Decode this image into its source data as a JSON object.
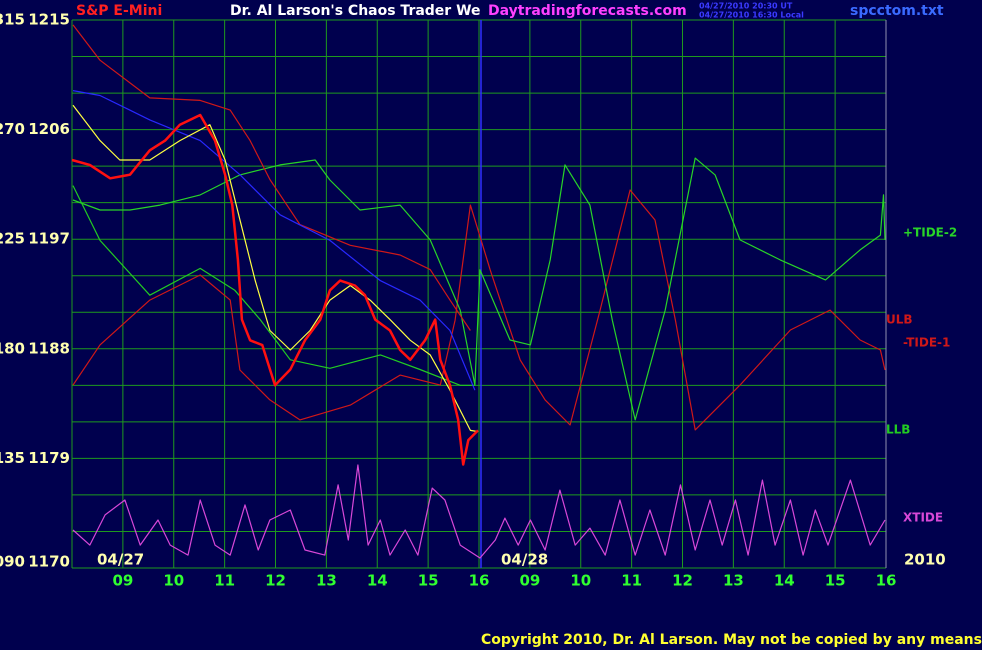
{
  "chart_data": {
    "type": "line",
    "instrument": "S&P E-Mini",
    "title": "Dr. Al Larson's Chaos Trader We",
    "website": "Daytradingforecasts.com",
    "timestamps": [
      "04/27/2010 20:30 UT",
      "04/27/2010 16:30 Local"
    ],
    "filename": "spcctom.txt",
    "copyright": "Copyright 2010, Dr. Al Larson. May not be copied by any means.",
    "date_labels": [
      "04/27",
      "04/28"
    ],
    "year": "2010",
    "xlim": [
      0,
      16
    ],
    "xticks": [
      {
        "value": 1,
        "label": "09"
      },
      {
        "value": 2,
        "label": "10"
      },
      {
        "value": 3,
        "label": "11"
      },
      {
        "value": 4,
        "label": "12"
      },
      {
        "value": 5,
        "label": "13"
      },
      {
        "value": 6,
        "label": "14"
      },
      {
        "value": 7,
        "label": "15"
      },
      {
        "value": 8,
        "label": "16"
      },
      {
        "value": 9,
        "label": "09"
      },
      {
        "value": 10,
        "label": "10"
      },
      {
        "value": 11,
        "label": "11"
      },
      {
        "value": 12,
        "label": "12"
      },
      {
        "value": 13,
        "label": "13"
      },
      {
        "value": 14,
        "label": "14"
      },
      {
        "value": 15,
        "label": "15"
      },
      {
        "value": 16,
        "label": "16"
      }
    ],
    "ylim": [
      1170,
      1215
    ],
    "yticks": [
      1170,
      1179,
      1188,
      1197,
      1206,
      1215
    ],
    "y2lim": [
      90,
      315
    ],
    "y2ticks": [
      {
        "value": 90,
        "label": "090"
      },
      135,
      180,
      225,
      270,
      315
    ],
    "ygrid": [
      1170,
      1173,
      1176,
      1179,
      1182,
      1185,
      1188,
      1191,
      1194,
      1197,
      1200,
      1203,
      1206,
      1209,
      1212,
      1215
    ],
    "grid": true,
    "series": [
      {
        "color": "#ff1010",
        "x": [
          0.0,
          0.35,
          0.75,
          1.14,
          1.53,
          1.83,
          2.12,
          2.52,
          2.81,
          3.01,
          3.15,
          3.26,
          3.34,
          3.5,
          3.74,
          3.99,
          4.29,
          4.58,
          4.88,
          5.07,
          5.27,
          5.56,
          5.76,
          5.96,
          6.25,
          6.45,
          6.65,
          6.94,
          7.14,
          7.24,
          7.43,
          7.59,
          7.69,
          7.79,
          7.98
        ],
        "values": [
          1203.5,
          1203.1,
          1202.0,
          1202.3,
          1204.3,
          1205.1,
          1206.4,
          1207.2,
          1205.1,
          1202.3,
          1199.8,
          1195.3,
          1190.4,
          1188.7,
          1188.3,
          1185.0,
          1186.3,
          1188.7,
          1190.4,
          1192.8,
          1193.6,
          1193.2,
          1192.4,
          1190.4,
          1189.5,
          1187.9,
          1187.1,
          1188.7,
          1190.4,
          1187.1,
          1185.0,
          1182.2,
          1178.5,
          1180.5,
          1181.3
        ]
      },
      {
        "color": "#ffff40",
        "x": [
          0.02,
          0.55,
          0.94,
          1.53,
          2.12,
          2.71,
          3.01,
          3.3,
          3.6,
          3.89,
          4.29,
          4.68,
          5.07,
          5.47,
          5.86,
          6.25,
          6.65,
          7.04,
          7.43,
          7.83,
          7.98
        ],
        "values": [
          1208.0,
          1205.1,
          1203.5,
          1203.5,
          1205.1,
          1206.4,
          1203.5,
          1198.6,
          1193.6,
          1189.5,
          1187.9,
          1189.5,
          1192.0,
          1193.2,
          1192.0,
          1190.4,
          1188.7,
          1187.5,
          1184.6,
          1181.3,
          1181.2
        ]
      },
      {
        "color": "#2828ff",
        "x": [
          0.02,
          0.55,
          1.53,
          2.52,
          3.3,
          4.09,
          5.07,
          6.06,
          6.84,
          7.43,
          7.92
        ],
        "values": [
          1209.2,
          1208.8,
          1206.8,
          1205.1,
          1202.3,
          1199.0,
          1196.9,
          1193.6,
          1192.0,
          1189.5,
          1184.6
        ]
      },
      {
        "name": "ULB",
        "color": "#d01818",
        "x": [
          0.02,
          0.55,
          1.53,
          2.52,
          3.11,
          3.5,
          3.89,
          4.48,
          5.47,
          6.45,
          7.04,
          7.43,
          7.83
        ],
        "values": [
          1214.6,
          1211.7,
          1208.6,
          1208.4,
          1207.6,
          1205.1,
          1201.9,
          1198.2,
          1196.5,
          1195.7,
          1194.5,
          1192.0,
          1189.5
        ]
      },
      {
        "name": "LLB",
        "color": "#22cc22",
        "x": [
          0.02,
          0.55,
          1.53,
          2.52,
          3.2,
          3.7,
          4.29,
          5.07,
          6.06,
          6.84,
          7.63,
          7.92
        ],
        "values": [
          1201.4,
          1196.9,
          1192.4,
          1194.6,
          1192.8,
          1190.4,
          1187.1,
          1186.4,
          1187.5,
          1186.3,
          1185.0,
          1185.0
        ]
      },
      {
        "name": "+TIDE-2",
        "color": "#28d428",
        "axis": "y2",
        "x": [
          0.02,
          0.55,
          1.14,
          1.73,
          2.52,
          3.3,
          4.09,
          4.78,
          5.07,
          5.66,
          6.45,
          7.04,
          7.63,
          7.92,
          8.02,
          8.61,
          9.01,
          9.4,
          9.69,
          10.18,
          10.62,
          11.07,
          11.66,
          12.25,
          12.64,
          13.13,
          13.92,
          14.81,
          15.49,
          15.89,
          15.95,
          15.98
        ],
        "values": [
          241.1,
          237.0,
          237.0,
          239.0,
          243.2,
          251.4,
          255.5,
          257.5,
          249.3,
          237.0,
          239.0,
          224.7,
          195.9,
          165.1,
          212.4,
          183.6,
          181.6,
          216.5,
          255.5,
          239.0,
          191.8,
          150.8,
          195.9,
          258.3,
          251.4,
          224.7,
          216.5,
          208.3,
          220.6,
          226.7,
          243.2,
          224.7
        ]
      },
      {
        "name": "-TIDE-1",
        "color": "#d01818",
        "axis": "y2",
        "x": [
          0.02,
          0.55,
          1.53,
          2.52,
          3.11,
          3.3,
          3.89,
          4.48,
          5.47,
          6.45,
          7.24,
          7.53,
          7.83,
          8.22,
          8.81,
          9.3,
          9.79,
          10.38,
          10.97,
          11.46,
          11.86,
          12.25,
          13.13,
          14.12,
          14.9,
          15.49,
          15.89,
          15.98
        ],
        "values": [
          165.1,
          181.6,
          200.0,
          210.3,
          200.0,
          171.3,
          159.0,
          150.8,
          156.9,
          169.2,
          165.1,
          191.8,
          239.0,
          212.4,
          175.4,
          159.0,
          148.7,
          195.9,
          245.2,
          232.9,
          191.8,
          146.7,
          165.1,
          187.7,
          195.9,
          183.6,
          179.5,
          171.3
        ]
      },
      {
        "name": "XTIDE",
        "color": "#d848d8",
        "axis": "y2",
        "x": [
          0.02,
          0.35,
          0.65,
          1.04,
          1.34,
          1.69,
          1.93,
          2.28,
          2.52,
          2.81,
          3.11,
          3.4,
          3.66,
          3.89,
          4.29,
          4.58,
          4.97,
          5.23,
          5.43,
          5.62,
          5.82,
          6.06,
          6.25,
          6.55,
          6.8,
          7.08,
          7.33,
          7.63,
          8.02,
          8.32,
          8.51,
          8.77,
          9.01,
          9.3,
          9.59,
          9.89,
          10.18,
          10.48,
          10.77,
          11.07,
          11.36,
          11.66,
          11.96,
          12.25,
          12.54,
          12.78,
          13.04,
          13.29,
          13.57,
          13.82,
          14.12,
          14.37,
          14.61,
          14.86,
          15.3,
          15.69,
          15.98
        ],
        "values": [
          105.6,
          99.4,
          111.8,
          117.9,
          99.4,
          109.7,
          99.4,
          95.3,
          117.9,
          99.4,
          95.3,
          115.9,
          97.4,
          109.7,
          113.8,
          97.4,
          95.3,
          124.1,
          101.5,
          132.3,
          99.4,
          109.7,
          95.3,
          105.6,
          95.3,
          122.8,
          117.9,
          99.4,
          94.1,
          101.5,
          110.5,
          99.4,
          109.7,
          97.4,
          122.0,
          99.4,
          106.4,
          95.3,
          117.9,
          95.3,
          113.8,
          95.3,
          124.1,
          97.4,
          117.9,
          99.4,
          117.9,
          95.3,
          126.1,
          99.4,
          117.9,
          95.3,
          113.8,
          99.4,
          126.1,
          99.4,
          109.7
        ]
      }
    ]
  }
}
